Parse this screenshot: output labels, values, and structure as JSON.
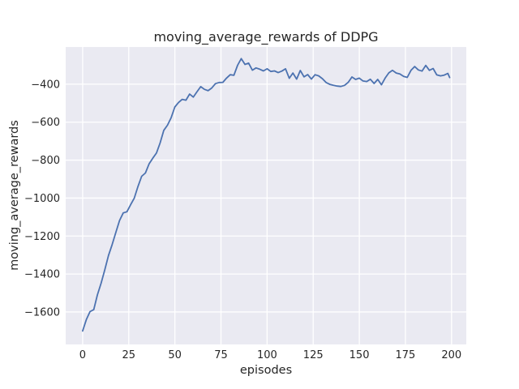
{
  "figure": {
    "title": "moving_average_rewards of DDPG",
    "xlabel": "episodes",
    "ylabel": "moving_average_rewards"
  },
  "chart_data": {
    "type": "line",
    "title": "moving_average_rewards of DDPG",
    "xlabel": "episodes",
    "ylabel": "moving_average_rewards",
    "x_ticks": [
      0,
      25,
      50,
      75,
      100,
      125,
      150,
      175,
      200
    ],
    "y_ticks": [
      -400,
      -600,
      -800,
      -1000,
      -1200,
      -1400,
      -1600
    ],
    "xlim": [
      -9.2,
      208
    ],
    "ylim": [
      -1771,
      -204
    ],
    "grid": true,
    "legend_position": "none",
    "colors": {
      "line": "#4c72b0",
      "plot_background": "#eaeaf2",
      "grid": "#ffffff",
      "text": "#262626",
      "figure_background": "#ffffff"
    },
    "series": [
      {
        "name": "moving_average_rewards",
        "x": [
          0,
          2,
          4,
          6,
          8,
          10,
          12,
          14,
          16,
          18,
          20,
          22,
          24,
          26,
          28,
          30,
          32,
          34,
          36,
          38,
          40,
          42,
          44,
          46,
          48,
          50,
          52,
          54,
          56,
          58,
          60,
          62,
          64,
          66,
          68,
          70,
          72,
          74,
          76,
          78,
          80,
          82,
          84,
          86,
          88,
          90,
          92,
          94,
          96,
          98,
          100,
          102,
          104,
          106,
          108,
          110,
          112,
          114,
          116,
          118,
          120,
          122,
          124,
          126,
          128,
          130,
          132,
          134,
          136,
          138,
          140,
          142,
          144,
          146,
          148,
          150,
          152,
          154,
          156,
          158,
          160,
          162,
          164,
          166,
          168,
          170,
          172,
          174,
          176,
          178,
          180,
          182,
          184,
          186,
          188,
          190,
          192,
          194,
          196,
          198,
          199
        ],
        "y": [
          -1700,
          -1640,
          -1598,
          -1588,
          -1510,
          -1448,
          -1378,
          -1302,
          -1245,
          -1180,
          -1118,
          -1078,
          -1072,
          -1035,
          -1000,
          -938,
          -885,
          -868,
          -820,
          -790,
          -763,
          -710,
          -643,
          -616,
          -576,
          -520,
          -496,
          -480,
          -484,
          -452,
          -468,
          -440,
          -413,
          -427,
          -434,
          -420,
          -397,
          -391,
          -390,
          -368,
          -350,
          -353,
          -300,
          -265,
          -296,
          -289,
          -326,
          -314,
          -321,
          -330,
          -319,
          -333,
          -330,
          -339,
          -331,
          -319,
          -369,
          -341,
          -373,
          -328,
          -361,
          -349,
          -373,
          -350,
          -356,
          -371,
          -391,
          -401,
          -406,
          -410,
          -412,
          -406,
          -390,
          -362,
          -375,
          -368,
          -383,
          -386,
          -374,
          -396,
          -375,
          -403,
          -368,
          -340,
          -327,
          -341,
          -346,
          -359,
          -364,
          -327,
          -307,
          -325,
          -331,
          -301,
          -327,
          -317,
          -351,
          -356,
          -352,
          -343,
          -365
        ]
      }
    ]
  }
}
